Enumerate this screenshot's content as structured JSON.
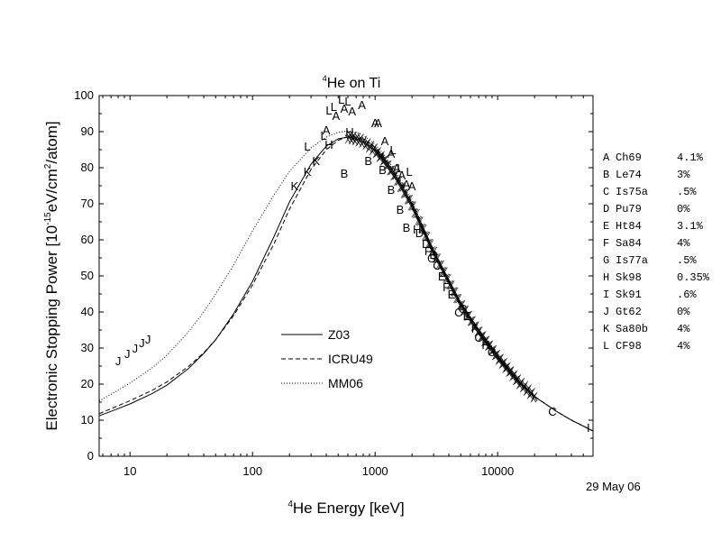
{
  "chart_data": {
    "type": "line",
    "title": {
      "sup": "4",
      "text": "He on Ti"
    },
    "xlabel": {
      "sup": "4",
      "text": "He Energy [keV]"
    },
    "ylabel": {
      "pre": "Electronic Stopping Power [10",
      "sup1": "-15",
      "mid": "eV/cm",
      "sup2": "2",
      "post": "/atom]"
    },
    "x_scale": "log",
    "xlim": [
      5.6,
      60000
    ],
    "ylim": [
      0,
      100
    ],
    "x_ticks": [
      {
        "value": 10,
        "label": "10"
      },
      {
        "value": 100,
        "label": "100"
      },
      {
        "value": 1000,
        "label": "1000"
      },
      {
        "value": 10000,
        "label": "10000"
      }
    ],
    "y_ticks": [
      0,
      10,
      20,
      30,
      40,
      50,
      60,
      70,
      80,
      90,
      100
    ],
    "date": "29 May 06",
    "series": [
      {
        "name": "Z03",
        "style": "solid",
        "x": [
          5.6,
          8,
          10,
          15,
          20,
          30,
          40,
          50,
          70,
          100,
          150,
          200,
          300,
          400,
          500,
          600,
          700,
          800,
          1000,
          1200,
          1500,
          2000,
          3000,
          5000,
          7000,
          10000,
          15000,
          20000,
          30000,
          40000,
          60000
        ],
        "y": [
          11.2,
          13.2,
          14.5,
          17.3,
          19.7,
          24.3,
          28.5,
          32.3,
          39.5,
          48.5,
          61.0,
          70.5,
          81.0,
          86.0,
          88.0,
          88.5,
          88.0,
          87.2,
          84.8,
          81.8,
          77.0,
          69.5,
          56.5,
          42.0,
          34.5,
          27.5,
          20.5,
          16.5,
          12.5,
          10.0,
          7.0
        ]
      },
      {
        "name": "ICRU49",
        "style": "dashed",
        "x": [
          5.6,
          8,
          10,
          15,
          20,
          30,
          40,
          50,
          70,
          100,
          150,
          200,
          300,
          400,
          500,
          600,
          700,
          800,
          1000,
          1200,
          1500,
          2000,
          3000,
          5000,
          7000,
          10000,
          15000,
          20000,
          30000,
          40000,
          60000
        ],
        "y": [
          11.8,
          14.0,
          15.4,
          18.2,
          20.6,
          24.9,
          28.7,
          32.3,
          39.0,
          47.5,
          59.0,
          68.5,
          79.5,
          85.0,
          87.6,
          88.6,
          88.5,
          87.9,
          85.6,
          82.6,
          77.8,
          70.2,
          56.8,
          42.2,
          34.6,
          27.6,
          20.6,
          16.6,
          12.5,
          10.0,
          7.0
        ]
      },
      {
        "name": "MM06",
        "style": "dotted",
        "x": [
          5.6,
          8,
          10,
          15,
          20,
          30,
          40,
          50,
          70,
          100,
          150,
          200,
          300,
          400,
          500,
          600,
          700,
          800,
          1000,
          1200,
          1500,
          2000,
          3000,
          5000,
          7000,
          10000,
          15000,
          20000,
          30000,
          40000,
          60000
        ],
        "y": [
          15.3,
          18.3,
          20.3,
          24.4,
          28.0,
          34.5,
          40.0,
          45.0,
          53.0,
          62.5,
          72.5,
          79.0,
          85.5,
          88.5,
          89.8,
          90.2,
          89.8,
          89.0,
          86.5,
          83.3,
          78.5,
          70.8,
          57.0,
          42.3,
          34.6,
          27.6,
          20.6,
          16.6,
          12.5,
          10.0,
          7.0
        ]
      }
    ],
    "measurements": [
      {
        "label": "A",
        "points": [
          [
            400,
            90.5
          ],
          [
            480,
            94.5
          ],
          [
            560,
            96.5
          ],
          [
            650,
            95.8
          ],
          [
            780,
            97.5
          ],
          [
            1000,
            92.5
          ],
          [
            1060,
            92.5
          ],
          [
            1200,
            87.5
          ],
          [
            1350,
            84.0
          ],
          [
            1500,
            80.0
          ],
          [
            1650,
            78.0
          ],
          [
            1800,
            75.5
          ],
          [
            2000,
            75.0
          ]
        ]
      },
      {
        "label": "B",
        "points": [
          [
            560,
            78.5
          ],
          [
            880,
            82.0
          ],
          [
            1150,
            79.5
          ],
          [
            1350,
            74.0
          ],
          [
            1600,
            68.5
          ],
          [
            1800,
            63.5
          ]
        ]
      },
      {
        "label": "C",
        "points": [
          [
            3200,
            53.0
          ],
          [
            4800,
            40.0
          ],
          [
            7000,
            33.0
          ],
          [
            28000,
            12.5
          ]
        ]
      },
      {
        "label": "D",
        "points": [
          [
            2300,
            62.0
          ],
          [
            2600,
            59.0
          ],
          [
            3000,
            56.0
          ]
        ]
      },
      {
        "label": "E",
        "points": [
          [
            3500,
            50.0
          ],
          [
            4200,
            45.0
          ],
          [
            5600,
            39.0
          ]
        ]
      },
      {
        "label": "F",
        "points": [
          [
            2700,
            57.0
          ],
          [
            3800,
            47.0
          ],
          [
            6500,
            35.5
          ]
        ]
      },
      {
        "label": "G",
        "points": [
          [
            2900,
            55.0
          ],
          [
            5200,
            41.0
          ],
          [
            9000,
            29.0
          ]
        ]
      },
      {
        "label": "H",
        "points": [
          [
            420,
            86.5
          ],
          [
            620,
            90.0
          ],
          [
            2200,
            63.0
          ],
          [
            8000,
            31.0
          ]
        ]
      },
      {
        "label": "I",
        "points": [
          [
            55000,
            8.0
          ]
        ]
      },
      {
        "label": "J",
        "points": [
          [
            8,
            26.5
          ],
          [
            9.5,
            28.5
          ],
          [
            11,
            30.0
          ],
          [
            12.5,
            31.5
          ],
          [
            14,
            32.5
          ]
        ]
      },
      {
        "label": "K",
        "points": [
          [
            220,
            75.0
          ],
          [
            280,
            79.0
          ],
          [
            330,
            82.0
          ]
        ]
      },
      {
        "label": "L",
        "points": [
          [
            280,
            86.0
          ],
          [
            380,
            89.0
          ],
          [
            420,
            96.0
          ],
          [
            460,
            97.0
          ],
          [
            530,
            99.0
          ],
          [
            600,
            98.5
          ],
          [
            1200,
            83.0
          ],
          [
            1400,
            85.0
          ],
          [
            1600,
            80.0
          ],
          [
            1900,
            79.0
          ]
        ]
      }
    ],
    "ticks_cluster": {
      "comment": "",
      "x_start": 600,
      "x_end": 20000
    },
    "references": [
      {
        "label": "A",
        "code": "Ch69",
        "err": "4.1%"
      },
      {
        "label": "B",
        "code": "Le74",
        "err": "3%"
      },
      {
        "label": "C",
        "code": "Is75a",
        "err": ".5%"
      },
      {
        "label": "D",
        "code": "Pu79",
        "err": "0%"
      },
      {
        "label": "E",
        "code": "Ht84",
        "err": "3.1%"
      },
      {
        "label": "F",
        "code": "Sa84",
        "err": "4%"
      },
      {
        "label": "G",
        "code": "Is77a",
        "err": ".5%"
      },
      {
        "label": "H",
        "code": "Sk98",
        "err": "0.35%"
      },
      {
        "label": "I",
        "code": "Sk91",
        "err": ".6%"
      },
      {
        "label": "J",
        "code": "Gt62",
        "err": "0%"
      },
      {
        "label": "K",
        "code": "Sa80b",
        "err": "4%"
      },
      {
        "label": "L",
        "code": "CF98",
        "err": "4%"
      }
    ]
  }
}
